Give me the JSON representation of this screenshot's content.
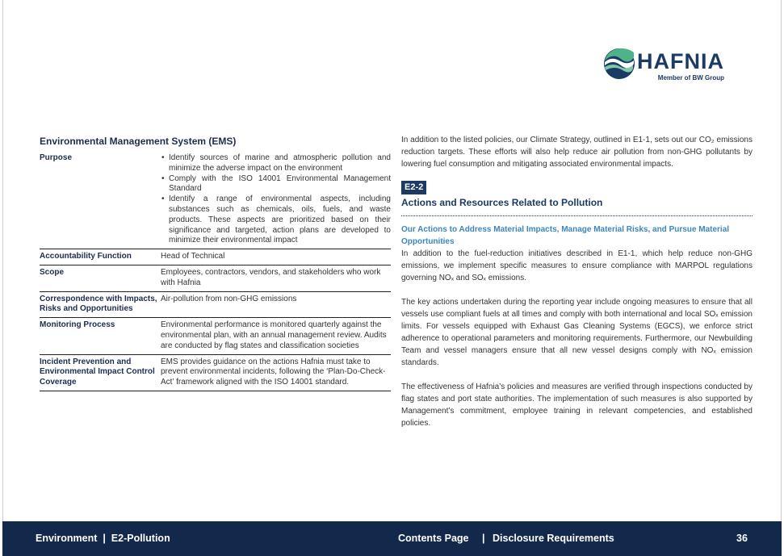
{
  "logo": {
    "name": "HAFNIA",
    "tagline": "Member of BW Group",
    "colors": {
      "navy": "#1b3a64",
      "green": "#3aa37a"
    }
  },
  "ems": {
    "title": "Environmental Management System (EMS)",
    "rows": [
      {
        "label": "Purpose",
        "bullets": [
          "Identify sources of marine and atmospheric pollution and minimize the adverse impact on the environment",
          "Comply with the ISO 14001 Environmental Management Standard",
          "Identify a range of environmental aspects, including substances such as chemicals, oils, fuels, and waste products. These aspects are prioritized based on their significance and targeted, action plans are developed to minimize their environmental impact"
        ]
      },
      {
        "label": "Accountability Function",
        "value": "Head of Technical"
      },
      {
        "label": "Scope",
        "value": "Employees, contractors, vendors, and stakeholders who work with Hafnia"
      },
      {
        "label": "Correspondence with Impacts, Risks and Opportunities",
        "value": "Air-pollution from non-GHG emissions"
      },
      {
        "label": "Monitoring Process",
        "value": "Environmental performance is monitored quarterly against the environmental plan, with an annual management review. Audits are conducted by flag states and classification societies"
      },
      {
        "label": "Incident Prevention and Environmental Impact Control Coverage",
        "value": "EMS provides guidance on the actions Hafnia must take to prevent environmental incidents, following the ‘Plan-Do-Check-Act’ framework aligned with the ISO 14001 standard."
      }
    ]
  },
  "right": {
    "intro": "In addition to the listed policies, our Climate Strategy, outlined in E1-1, sets out our CO₂ emissions reduction targets. These efforts will also help reduce air pollution from non-GHG pollutants by lowering fuel consumption and mitigating associated environmental impacts.",
    "tag": "E2-2",
    "heading": "Actions and Resources Related to Pollution",
    "subheading": "Our Actions to Address Material Impacts, Manage Material Risks, and Pursue Material Opportunities",
    "paragraphs": [
      "In addition to the fuel-reduction initiatives described in E1-1, which help reduce non-GHG emissions, we implement specific measures to ensure compliance with MARPOL regulations governing NOₓ and SOₓ emissions.",
      "The key actions undertaken during the reporting year include ongoing measures to ensure that all vessels use compliant fuels at all times and comply with both international and local SOₓ emission limits. For vessels equipped with Exhaust Gas Cleaning Systems (EGCS), we enforce strict adherence to operational parameters and monitoring requirements. Furthermore, our Newbuilding Team and vessel managers ensure that all new vessel designs comply with NOₓ emission standards.",
      "The effectiveness of Hafnia’s policies and measures are verified through inspections conducted by flag states and port state authorities. The implementation of such measures is also supported by Management’s commitment, employee training in relevant competencies, and established policies."
    ]
  },
  "footer": {
    "section": "Environment  |  E2-Pollution",
    "contents": "Contents Page",
    "separator": "|",
    "disclosure": "Disclosure Requirements",
    "page": "36",
    "color": "#13294b"
  }
}
